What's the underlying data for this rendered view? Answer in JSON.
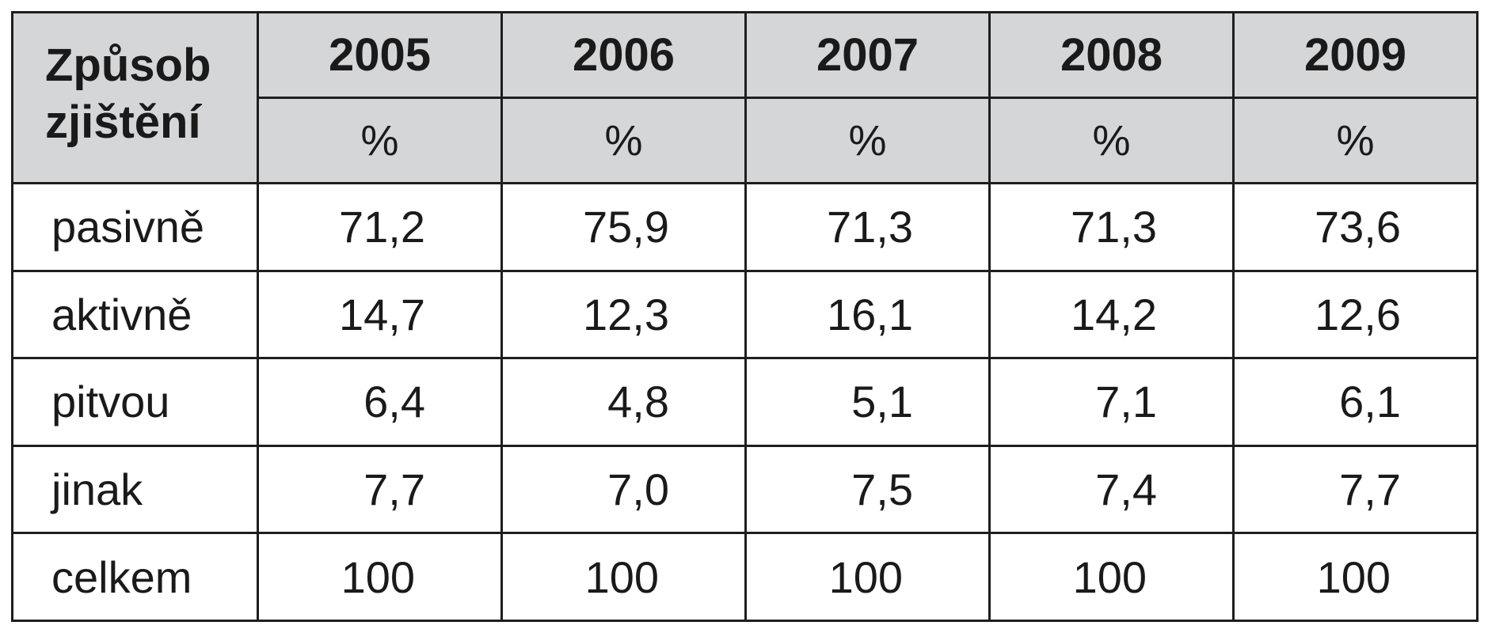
{
  "table": {
    "corner_label_line1": "Způsob",
    "corner_label_line2": "zjištění",
    "years": [
      "2005",
      "2006",
      "2007",
      "2008",
      "2009"
    ],
    "unit": "%",
    "rows": [
      {
        "label": "pasivně",
        "values": [
          "71,2",
          "75,9",
          "71,3",
          "71,3",
          "73,6"
        ]
      },
      {
        "label": "aktivně",
        "values": [
          "14,7",
          "12,3",
          "16,1",
          "14,2",
          "12,6"
        ]
      },
      {
        "label": "pitvou",
        "values": [
          "6,4",
          "4,8",
          "5,1",
          "7,1",
          "6,1"
        ]
      },
      {
        "label": "jinak",
        "values": [
          "7,7",
          "7,0",
          "7,5",
          "7,4",
          "7,7"
        ]
      },
      {
        "label": "celkem",
        "values": [
          "100",
          "100",
          "100",
          "100",
          "100"
        ]
      }
    ]
  }
}
